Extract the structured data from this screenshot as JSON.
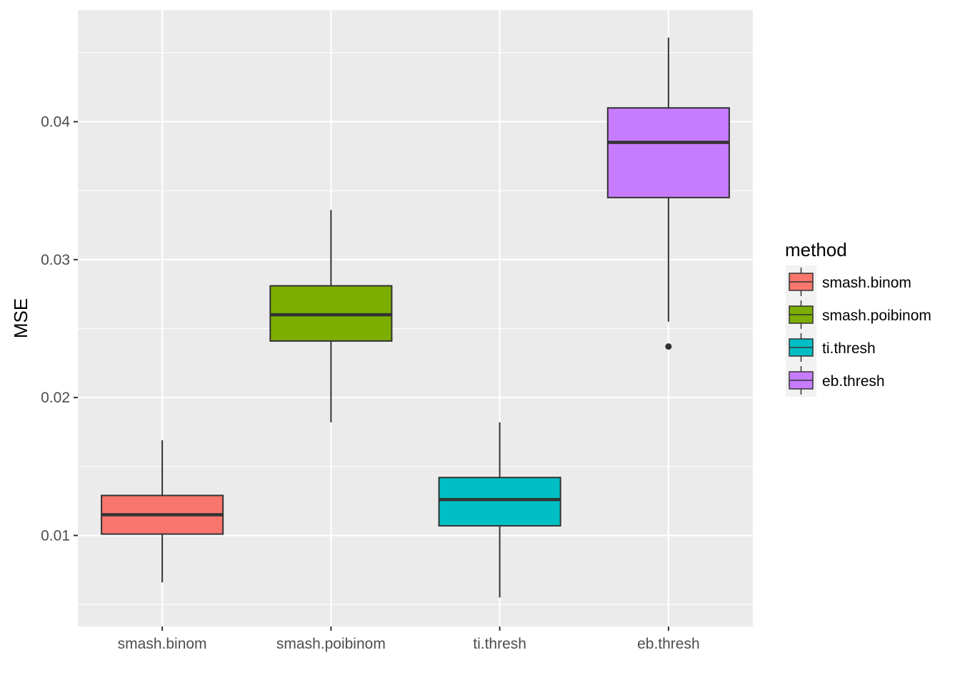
{
  "chart_data": {
    "type": "boxplot",
    "ylabel": "MSE",
    "xlabel": "",
    "ylim": [
      0.0034,
      0.0481
    ],
    "y_ticks": [
      0.01,
      0.02,
      0.03,
      0.04
    ],
    "y_tick_labels": [
      "0.01",
      "0.02",
      "0.03",
      "0.04"
    ],
    "grid": true,
    "legend": {
      "title": "method",
      "position": "right"
    },
    "categories": [
      "smash.binom",
      "smash.poibinom",
      "ti.thresh",
      "eb.thresh"
    ],
    "boxes": [
      {
        "category": "smash.binom",
        "color": "#F8766D",
        "whisker_low": 0.0066,
        "q1": 0.0101,
        "median": 0.0115,
        "q3": 0.0129,
        "whisker_high": 0.0169,
        "outliers": []
      },
      {
        "category": "smash.poibinom",
        "color": "#7CAE00",
        "whisker_low": 0.0182,
        "q1": 0.0241,
        "median": 0.026,
        "q3": 0.0281,
        "whisker_high": 0.0336,
        "outliers": []
      },
      {
        "category": "ti.thresh",
        "color": "#00BFC4",
        "whisker_low": 0.0055,
        "q1": 0.0107,
        "median": 0.0126,
        "q3": 0.0142,
        "whisker_high": 0.0182,
        "outliers": []
      },
      {
        "category": "eb.thresh",
        "color": "#C77CFF",
        "whisker_low": 0.0255,
        "q1": 0.0345,
        "median": 0.0385,
        "q3": 0.041,
        "whisker_high": 0.0461,
        "outliers": [
          0.0237
        ]
      }
    ]
  }
}
